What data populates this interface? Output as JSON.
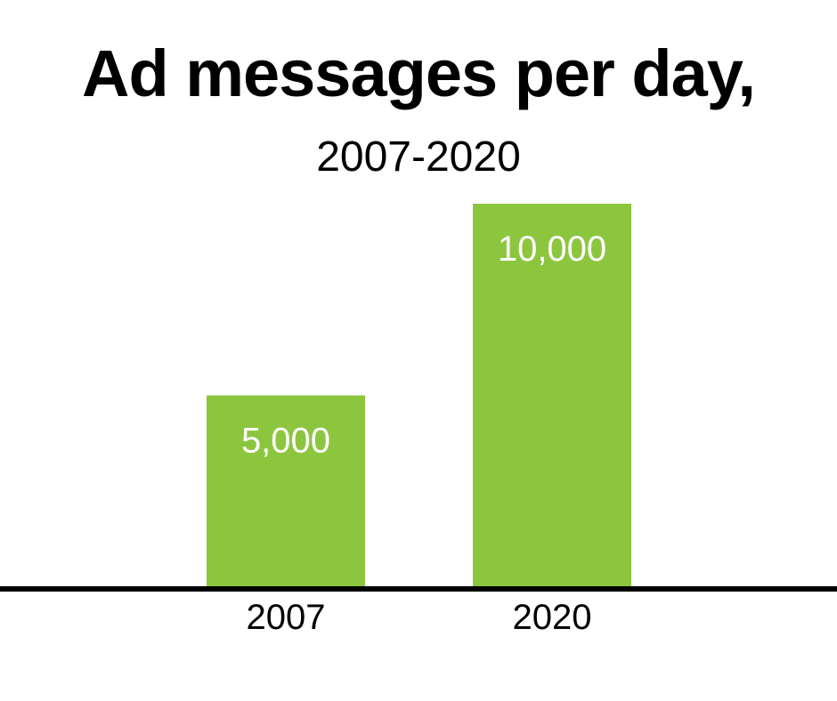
{
  "chart_data": {
    "type": "bar",
    "title": "Ad messages per day,",
    "subtitle": "2007-2020",
    "categories": [
      "2007",
      "2020"
    ],
    "values": [
      5000,
      10000
    ],
    "data_labels": [
      "5,000",
      "10,000"
    ],
    "xlabel": "",
    "ylabel": "",
    "ylim": [
      0,
      10000
    ],
    "grid": false,
    "legend": "none",
    "bar_color": "#8cc63f",
    "axis_color": "#000000",
    "label_color": "#ffffff"
  }
}
